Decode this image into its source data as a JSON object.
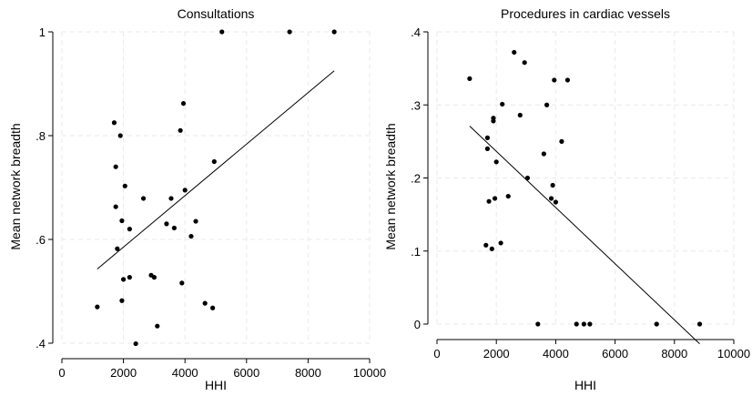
{
  "chart_data": [
    {
      "type": "scatter",
      "title": "Consultations",
      "xlabel": "HHI",
      "ylabel": "Mean network breadth",
      "xlim": [
        0,
        10000
      ],
      "ylim": [
        0.4,
        1.0
      ],
      "xticks": [
        0,
        2000,
        4000,
        6000,
        8000,
        10000
      ],
      "xtick_labels": [
        "0",
        "2000",
        "4000",
        "6000",
        "8000",
        "10000"
      ],
      "yticks": [
        0.4,
        0.6,
        0.8,
        1.0
      ],
      "ytick_labels": [
        ".4",
        ".6",
        ".8",
        "1"
      ],
      "grid": true,
      "points": [
        {
          "x": 1150,
          "y": 0.47
        },
        {
          "x": 1700,
          "y": 0.825
        },
        {
          "x": 1750,
          "y": 0.74
        },
        {
          "x": 1750,
          "y": 0.663
        },
        {
          "x": 1800,
          "y": 0.582
        },
        {
          "x": 1900,
          "y": 0.8
        },
        {
          "x": 1950,
          "y": 0.636
        },
        {
          "x": 1950,
          "y": 0.482
        },
        {
          "x": 2000,
          "y": 0.523
        },
        {
          "x": 2050,
          "y": 0.703
        },
        {
          "x": 2200,
          "y": 0.62
        },
        {
          "x": 2200,
          "y": 0.527
        },
        {
          "x": 2400,
          "y": 0.399
        },
        {
          "x": 2650,
          "y": 0.679
        },
        {
          "x": 2900,
          "y": 0.531
        },
        {
          "x": 3000,
          "y": 0.527
        },
        {
          "x": 3100,
          "y": 0.433
        },
        {
          "x": 3400,
          "y": 0.63
        },
        {
          "x": 3550,
          "y": 0.679
        },
        {
          "x": 3650,
          "y": 0.622
        },
        {
          "x": 3850,
          "y": 0.81
        },
        {
          "x": 3900,
          "y": 0.516
        },
        {
          "x": 3950,
          "y": 0.862
        },
        {
          "x": 4000,
          "y": 0.695
        },
        {
          "x": 4200,
          "y": 0.606
        },
        {
          "x": 4350,
          "y": 0.635
        },
        {
          "x": 4650,
          "y": 0.477
        },
        {
          "x": 4900,
          "y": 0.468
        },
        {
          "x": 4950,
          "y": 0.75
        },
        {
          "x": 5200,
          "y": 1.0
        },
        {
          "x": 7400,
          "y": 1.0
        },
        {
          "x": 8850,
          "y": 1.0
        }
      ],
      "fit_line": {
        "x": [
          1150,
          8850
        ],
        "y": [
          0.543,
          0.925
        ]
      }
    },
    {
      "type": "scatter",
      "title": "Procedures in cardiac vessels",
      "xlabel": "HHI",
      "ylabel": "Mean network breadth",
      "xlim": [
        0,
        10000
      ],
      "ylim": [
        0,
        0.4
      ],
      "xticks": [
        0,
        2000,
        4000,
        6000,
        8000,
        10000
      ],
      "xtick_labels": [
        "0",
        "2000",
        "4000",
        "6000",
        "8000",
        "10000"
      ],
      "yticks": [
        0,
        0.1,
        0.2,
        0.3,
        0.4
      ],
      "ytick_labels": [
        "0",
        ".1",
        ".2",
        ".3",
        ".4"
      ],
      "grid": true,
      "points": [
        {
          "x": 1100,
          "y": 0.336
        },
        {
          "x": 1650,
          "y": 0.108
        },
        {
          "x": 1700,
          "y": 0.255
        },
        {
          "x": 1700,
          "y": 0.24
        },
        {
          "x": 1750,
          "y": 0.168
        },
        {
          "x": 1850,
          "y": 0.103
        },
        {
          "x": 1900,
          "y": 0.282
        },
        {
          "x": 1900,
          "y": 0.278
        },
        {
          "x": 1950,
          "y": 0.172
        },
        {
          "x": 2000,
          "y": 0.222
        },
        {
          "x": 2150,
          "y": 0.111
        },
        {
          "x": 2200,
          "y": 0.301
        },
        {
          "x": 2400,
          "y": 0.175
        },
        {
          "x": 2600,
          "y": 0.372
        },
        {
          "x": 2800,
          "y": 0.286
        },
        {
          "x": 2950,
          "y": 0.358
        },
        {
          "x": 3050,
          "y": 0.2
        },
        {
          "x": 3400,
          "y": 0.0
        },
        {
          "x": 3600,
          "y": 0.233
        },
        {
          "x": 3700,
          "y": 0.3
        },
        {
          "x": 3850,
          "y": 0.172
        },
        {
          "x": 3900,
          "y": 0.19
        },
        {
          "x": 3950,
          "y": 0.334
        },
        {
          "x": 4000,
          "y": 0.167
        },
        {
          "x": 4200,
          "y": 0.25
        },
        {
          "x": 4400,
          "y": 0.334
        },
        {
          "x": 4700,
          "y": 0.0
        },
        {
          "x": 4950,
          "y": 0.0
        },
        {
          "x": 5150,
          "y": 0.0
        },
        {
          "x": 7400,
          "y": 0.0
        },
        {
          "x": 8850,
          "y": 0.0
        }
      ],
      "fit_line": {
        "x": [
          1100,
          8850
        ],
        "y": [
          0.271,
          -0.027
        ]
      }
    }
  ]
}
